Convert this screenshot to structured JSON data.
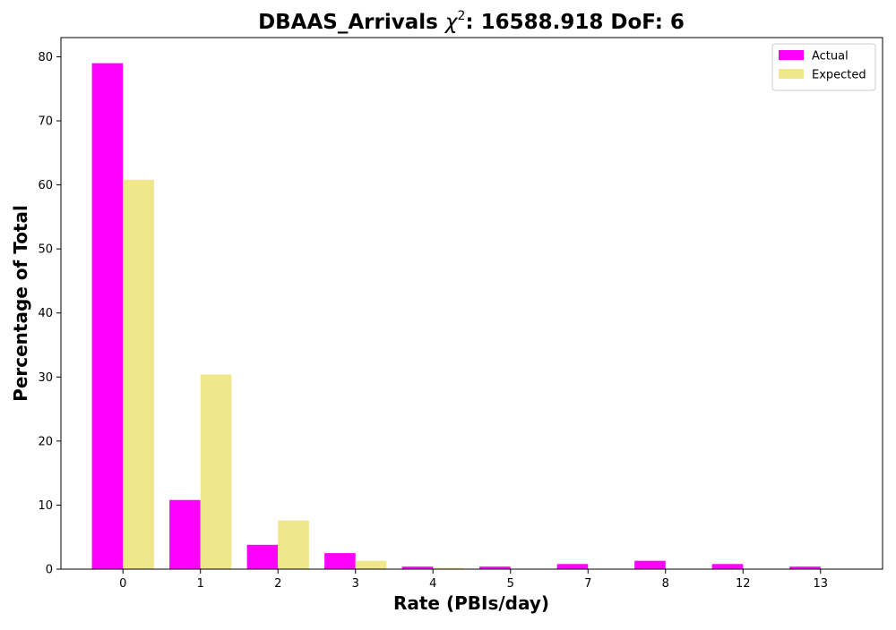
{
  "chart_data": {
    "type": "bar",
    "title_prefix": "DBAAS_Arrivals ",
    "title_chi": "χ",
    "title_sup": "2",
    "title_suffix": ": 16588.918 DoF: 6",
    "xlabel": "Rate (PBIs/day)",
    "ylabel": "Percentage of Total",
    "categories": [
      "0",
      "1",
      "2",
      "3",
      "4",
      "5",
      "7",
      "8",
      "12",
      "13"
    ],
    "series": [
      {
        "name": "Actual",
        "color": "#ff00ff",
        "values": [
          79.0,
          10.8,
          3.8,
          2.5,
          0.4,
          0.4,
          0.8,
          1.3,
          0.8,
          0.4
        ]
      },
      {
        "name": "Expected",
        "color": "#f0e68c",
        "values": [
          60.8,
          30.4,
          7.6,
          1.3,
          0.2,
          0.0,
          0.0,
          0.0,
          0.0,
          0.0
        ]
      }
    ],
    "ylim": [
      0,
      83
    ],
    "yticks": [
      "0",
      "10",
      "20",
      "30",
      "40",
      "50",
      "60",
      "70",
      "80"
    ],
    "grid": false,
    "legend_position": "top-right"
  }
}
